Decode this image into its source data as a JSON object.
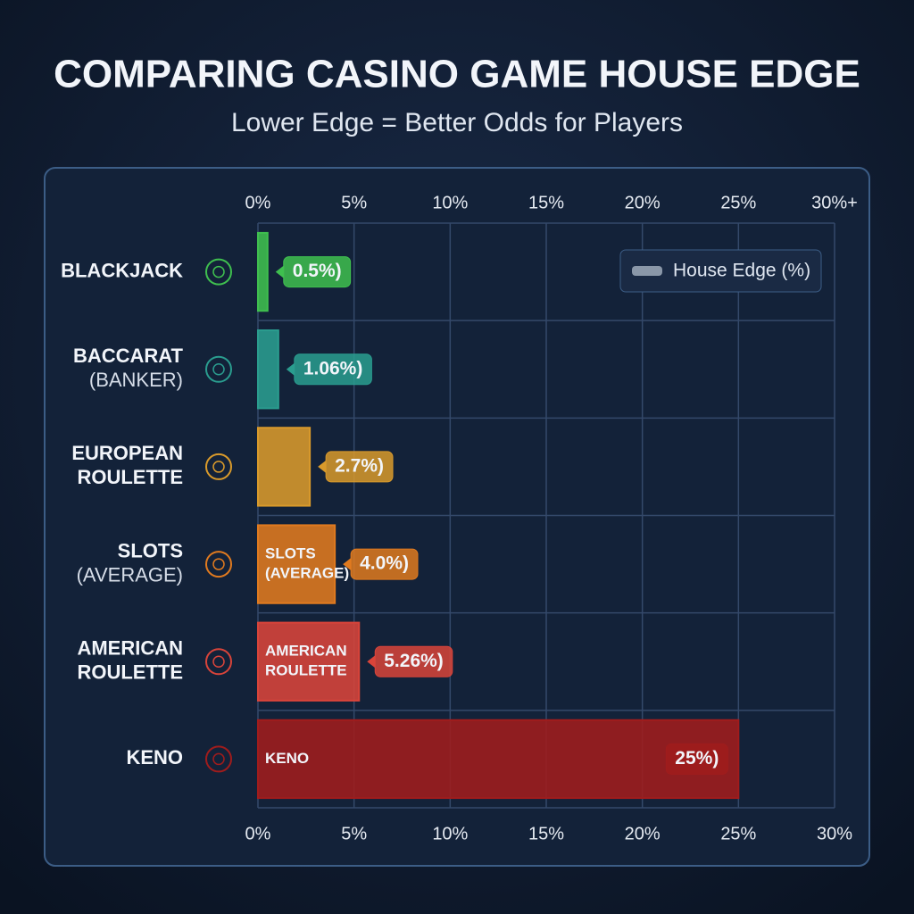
{
  "chart_data": {
    "type": "hbar",
    "title": "COMPARING CASINO GAME HOUSE EDGE",
    "subtitle": "Lower Edge = Better Odds for Players",
    "categories": [
      [
        "BLACKJACK"
      ],
      [
        "BACCARAT",
        "(BANKER)"
      ],
      [
        "EUROPEAN",
        "ROULETTE"
      ],
      [
        "SLOTS",
        "(AVERAGE)"
      ],
      [
        "AMERICAN",
        "ROULETTE"
      ],
      [
        "KENO"
      ]
    ],
    "series": [
      {
        "name": "House Edge (%)",
        "color": "#8a97a8",
        "values": [
          0.5,
          1.06,
          2.7,
          4.0,
          5.26,
          25
        ],
        "value_labels": [
          "0.5%)",
          "1.06%)",
          "2.7%)",
          "4.0%)",
          "5.26%)",
          "25%)"
        ],
        "colors": [
          "#3fbf4f",
          "#2a9d8f",
          "#d99a2b",
          "#e07a1f",
          "#d9443a",
          "#a01c1c"
        ],
        "bar_labels": [
          null,
          null,
          null,
          [
            "SLOTS",
            "(AVERAGE)"
          ],
          [
            "AMERICAN",
            "ROULETTE"
          ],
          [
            "KENO"
          ]
        ]
      }
    ],
    "xlim": [
      0,
      30
    ],
    "xticks": [
      {
        "value": 0,
        "label": "0%"
      },
      {
        "value": 5,
        "label": "5%"
      },
      {
        "value": 10,
        "label": "10%"
      },
      {
        "value": 15,
        "label": "15%"
      },
      {
        "value": 20,
        "label": "20%"
      },
      {
        "value": 25,
        "label": "25%"
      },
      {
        "value": 30,
        "label": "30%"
      }
    ],
    "top_xticks": [
      {
        "value": 0,
        "label": "0%"
      },
      {
        "value": 5,
        "label": "5%"
      },
      {
        "value": 10,
        "label": "10%"
      },
      {
        "value": 15,
        "label": "15%"
      },
      {
        "value": 20,
        "label": "20%"
      },
      {
        "value": 25,
        "label": "25%"
      },
      {
        "value": 30,
        "label": "30%+"
      }
    ],
    "grid": true,
    "legend": "upper right"
  }
}
